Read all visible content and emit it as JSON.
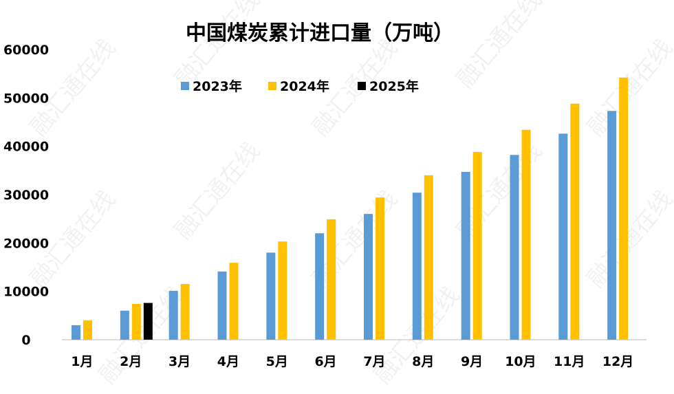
{
  "chart_data": {
    "type": "bar",
    "title": "中国煤炭累计进口量（万吨）",
    "categories": [
      "1月",
      "2月",
      "3月",
      "4月",
      "5月",
      "6月",
      "7月",
      "8月",
      "9月",
      "10月",
      "11月",
      "12月"
    ],
    "series": [
      {
        "name": "2023年",
        "color": "#5B9BD5",
        "values": [
          3000,
          6000,
          10100,
          14100,
          18000,
          22000,
          26000,
          30400,
          34700,
          38200,
          42600,
          47300
        ]
      },
      {
        "name": "2024年",
        "color": "#FFC000",
        "values": [
          4000,
          7400,
          11500,
          15900,
          20300,
          24900,
          29400,
          34000,
          38800,
          43400,
          48800,
          54200
        ]
      },
      {
        "name": "2025年",
        "color": "#000000",
        "values": [
          null,
          7600,
          null,
          null,
          null,
          null,
          null,
          null,
          null,
          null,
          null,
          null
        ]
      }
    ],
    "yticks": [
      "0",
      "10000",
      "20000",
      "30000",
      "40000",
      "50000",
      "60000"
    ],
    "ylim": [
      0,
      60000
    ],
    "grid": false,
    "legend_position": "top-center",
    "watermark": "融汇通在线"
  }
}
